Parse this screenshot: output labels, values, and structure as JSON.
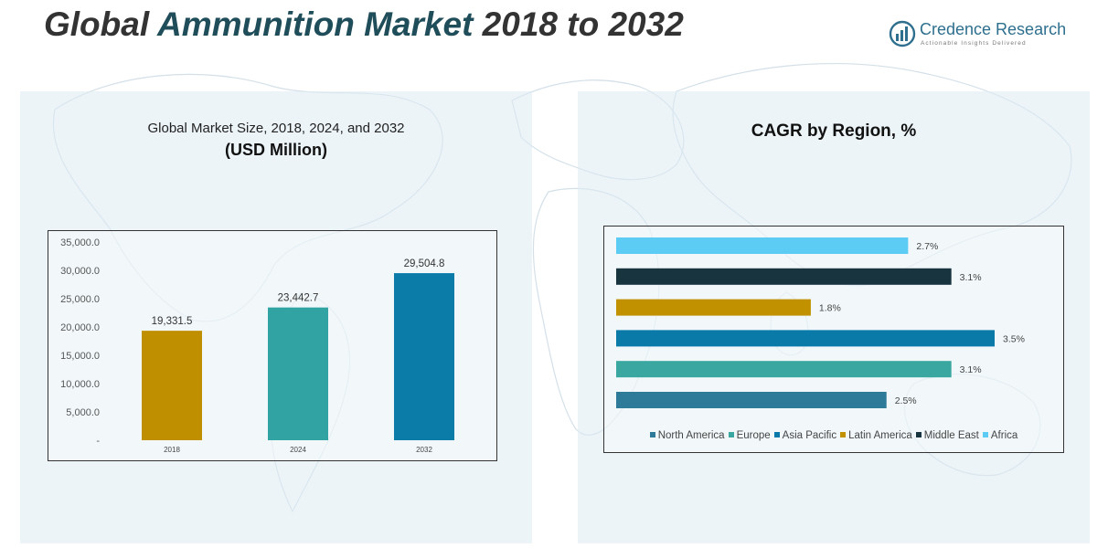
{
  "header": {
    "title_lead": "Global ",
    "title_highlight": "Ammunition Market",
    "title_tail": " 2018 to 2032"
  },
  "logo": {
    "name": "Credence Research",
    "tagline": "Actionable Insights Delivered",
    "icon": "bar-chart-circle-icon",
    "color": "#2e6f8e"
  },
  "chart_data": [
    {
      "type": "bar",
      "title": "Global Market Size, 2018, 2024, and 2032",
      "subtitle": "(USD Million)",
      "categories": [
        "2018",
        "2024",
        "2032"
      ],
      "values": [
        19331.5,
        23442.7,
        29504.8
      ],
      "value_labels": [
        "19,331.5",
        "23,442.7",
        "29,504.8"
      ],
      "colors": [
        "#bf8f00",
        "#31a3a3",
        "#0b7ca8"
      ],
      "ylim": [
        0,
        35000
      ],
      "yticks": [
        0,
        5000,
        10000,
        15000,
        20000,
        25000,
        30000,
        35000
      ],
      "ytick_labels": [
        "-",
        "5,000.0",
        "10,000.0",
        "15,000.0",
        "20,000.0",
        "25,000.0",
        "30,000.0",
        "35,000.0"
      ],
      "grid": false
    },
    {
      "type": "bar",
      "orientation": "horizontal",
      "title": "CAGR by Region, %",
      "categories": [
        "North America",
        "Europe",
        "Asia Pacific",
        "Latin America",
        "Middle East",
        "Africa"
      ],
      "values": [
        2.5,
        3.1,
        3.5,
        1.8,
        3.1,
        2.7
      ],
      "value_labels": [
        "2.5%",
        "3.1%",
        "3.5%",
        "1.8%",
        "3.1%",
        "2.7%"
      ],
      "colors": [
        "#2e7a99",
        "#3aa8a0",
        "#0a7aa8",
        "#c19100",
        "#17343f",
        "#5cccf5"
      ],
      "legend": "bottom",
      "grid": false
    }
  ]
}
